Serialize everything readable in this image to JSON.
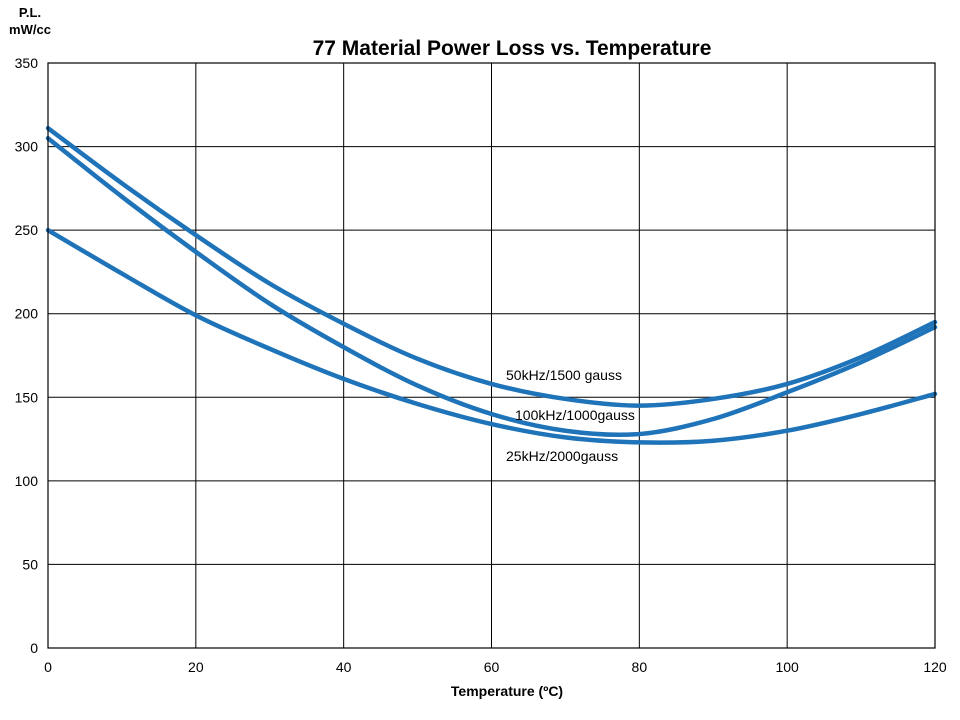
{
  "chart_data": {
    "type": "line",
    "title": "77 Material Power Loss vs. Temperature",
    "ylabel_line1": "P.L.",
    "ylabel_line2": "mW/cc",
    "xlabel": "Temperature (ºC)",
    "xlim": [
      0,
      120
    ],
    "ylim": [
      0,
      350
    ],
    "xticks": [
      0,
      20,
      40,
      60,
      80,
      100,
      120
    ],
    "yticks": [
      0,
      50,
      100,
      150,
      200,
      250,
      300,
      350
    ],
    "grid": true,
    "line_color": "#1F73B8",
    "series": [
      {
        "name": "50kHz/1500 gauss",
        "x": [
          0,
          10,
          20,
          30,
          40,
          50,
          60,
          70,
          80,
          90,
          100,
          110,
          120
        ],
        "y": [
          311,
          278,
          247,
          218,
          194,
          173,
          158,
          149,
          145,
          149,
          158,
          174,
          195
        ]
      },
      {
        "name": "100kHz/1000gauss",
        "x": [
          0,
          10,
          20,
          30,
          40,
          50,
          60,
          70,
          80,
          90,
          100,
          110,
          120
        ],
        "y": [
          305,
          270,
          237,
          206,
          180,
          157,
          140,
          130,
          128,
          137,
          153,
          171,
          192
        ]
      },
      {
        "name": "25kHz/2000gauss",
        "x": [
          0,
          10,
          20,
          30,
          40,
          50,
          60,
          70,
          80,
          90,
          100,
          110,
          120
        ],
        "y": [
          250,
          224,
          199,
          179,
          161,
          146,
          134,
          126,
          123,
          124,
          130,
          140,
          152
        ]
      }
    ]
  }
}
